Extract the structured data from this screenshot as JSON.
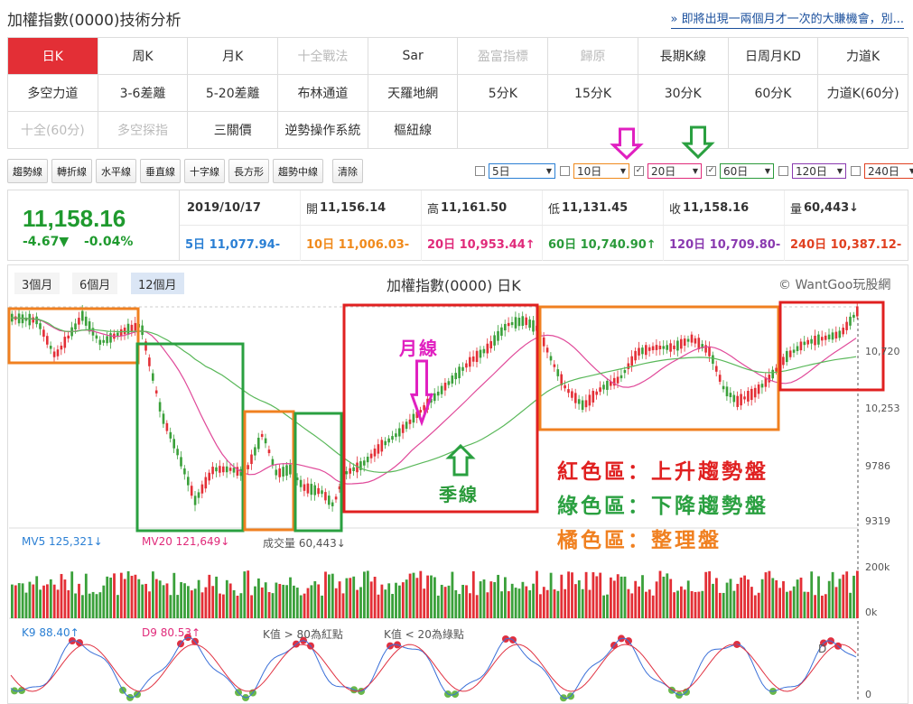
{
  "header": {
    "title": "加權指數(0000)技術分析",
    "promo": "» 即將出現一兩個月才一次的大賺機會，別..."
  },
  "tabs": [
    {
      "label": "日K",
      "state": "active"
    },
    {
      "label": "周K",
      "state": "normal"
    },
    {
      "label": "月K",
      "state": "normal"
    },
    {
      "label": "十全戰法",
      "state": "disabled"
    },
    {
      "label": "Sar",
      "state": "normal"
    },
    {
      "label": "盈富指標",
      "state": "disabled"
    },
    {
      "label": "歸原",
      "state": "disabled"
    },
    {
      "label": "長期K線",
      "state": "normal"
    },
    {
      "label": "日周月KD",
      "state": "normal"
    },
    {
      "label": "力道K",
      "state": "normal"
    },
    {
      "label": "多空力道",
      "state": "normal"
    },
    {
      "label": "3-6差離",
      "state": "normal"
    },
    {
      "label": "5-20差離",
      "state": "normal"
    },
    {
      "label": "布林通道",
      "state": "normal"
    },
    {
      "label": "天羅地網",
      "state": "normal"
    },
    {
      "label": "5分K",
      "state": "normal"
    },
    {
      "label": "15分K",
      "state": "normal"
    },
    {
      "label": "30分K",
      "state": "normal"
    },
    {
      "label": "60分K",
      "state": "normal"
    },
    {
      "label": "力道K(60分)",
      "state": "normal"
    },
    {
      "label": "十全(60分)",
      "state": "disabled"
    },
    {
      "label": "多空探指",
      "state": "disabled"
    },
    {
      "label": "三關價",
      "state": "normal"
    },
    {
      "label": "逆勢操作系統",
      "state": "normal"
    },
    {
      "label": "樞紐線",
      "state": "normal"
    }
  ],
  "toolbar": {
    "buttons": [
      "趨勢線",
      "轉折線",
      "水平線",
      "垂直線",
      "十字線",
      "長方形",
      "趨勢中線",
      "清除"
    ]
  },
  "ma_selectors": [
    {
      "label": "5日",
      "checked": false,
      "color": "#2a7fd4"
    },
    {
      "label": "10日",
      "checked": false,
      "color": "#f08a1c"
    },
    {
      "label": "20日",
      "checked": true,
      "color": "#e02a7a"
    },
    {
      "label": "60日",
      "checked": true,
      "color": "#2a9a3a"
    },
    {
      "label": "120日",
      "checked": false,
      "color": "#8a3ab0"
    },
    {
      "label": "240日",
      "checked": false,
      "color": "#e04020"
    }
  ],
  "quote": {
    "price": "11,158.16",
    "change": "-4.67▼",
    "change_pct": "-0.04%",
    "date": "2019/10/17",
    "open_label": "開",
    "open": "11,156.14",
    "high_label": "高",
    "high": "11,161.50",
    "low_label": "低",
    "low": "11,131.45",
    "close_label": "收",
    "close": "11,158.16",
    "vol_label": "量",
    "vol": "60,443↓",
    "ma5": "5日 11,077.94-",
    "ma10": "10日 11,006.03-",
    "ma20": "20日 10,953.44↑",
    "ma60": "60日 10,740.90↑",
    "ma120": "120日 10,709.80-",
    "ma240": "240日 10,387.12-"
  },
  "chart": {
    "periods": [
      "3個月",
      "6個月",
      "12個月"
    ],
    "active_period": "12個月",
    "title": "加權指數(0000) 日K",
    "copyright": "© WantGoo玩股網",
    "y_labels": [
      "10,720",
      "10,253",
      "9786",
      "9319"
    ],
    "vol_y_labels": [
      "200k",
      "0k"
    ],
    "kd_y_labels": [
      "0"
    ],
    "mv5": "MV5 125,321↓",
    "mv20": "MV20 121,649↓",
    "volume": "成交量 60,443↓",
    "k9": "K9 88.40↑",
    "d9": "D9 80.53↑",
    "kd_note1": "K值 > 80為紅點",
    "kd_note2": "K值 < 20為綠點",
    "kd_tail": "D"
  },
  "annotations": {
    "month_line": "月線",
    "season_line": "季線",
    "legend_red": "紅色區：上升趨勢盤",
    "legend_green": "綠色區：下降趨勢盤",
    "legend_orange": "橘色區：整理盤",
    "red_color": "#e02020",
    "green_color": "#2aa040",
    "orange_color": "#f08020"
  }
}
